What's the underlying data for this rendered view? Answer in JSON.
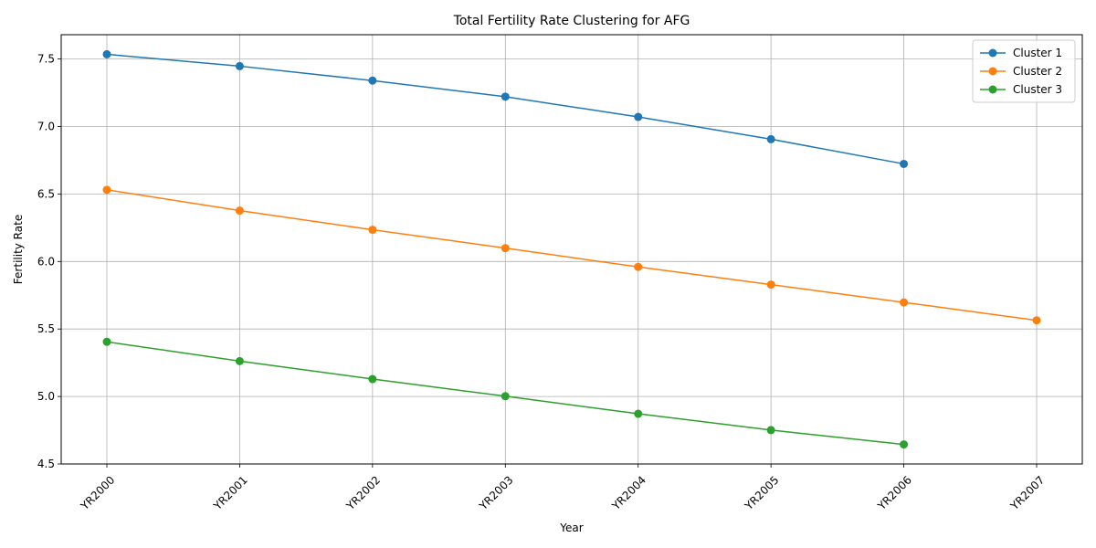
{
  "chart_data": {
    "type": "line",
    "title": "Total Fertility Rate Clustering for AFG",
    "xlabel": "Year",
    "ylabel": "Fertility Rate",
    "categories": [
      "YR2000",
      "YR2001",
      "YR2002",
      "YR2003",
      "YR2004",
      "YR2005",
      "YR2006",
      "YR2007"
    ],
    "ylim": [
      4.5,
      7.68
    ],
    "yticks": [
      4.5,
      5.0,
      5.5,
      6.0,
      6.5,
      7.0,
      7.5
    ],
    "grid": true,
    "legend_position": "top-right",
    "series": [
      {
        "name": "Cluster 1",
        "color": "#1f77b4",
        "values": [
          7.535,
          7.447,
          7.34,
          7.221,
          7.071,
          6.906,
          6.723,
          null
        ]
      },
      {
        "name": "Cluster 2",
        "color": "#ff7f0e",
        "values": [
          6.531,
          6.377,
          6.235,
          6.099,
          5.96,
          5.829,
          5.697,
          5.564
        ]
      },
      {
        "name": "Cluster 3",
        "color": "#2ca02c",
        "values": [
          5.405,
          5.262,
          5.129,
          5.002,
          4.872,
          4.751,
          4.645,
          null
        ]
      }
    ]
  }
}
